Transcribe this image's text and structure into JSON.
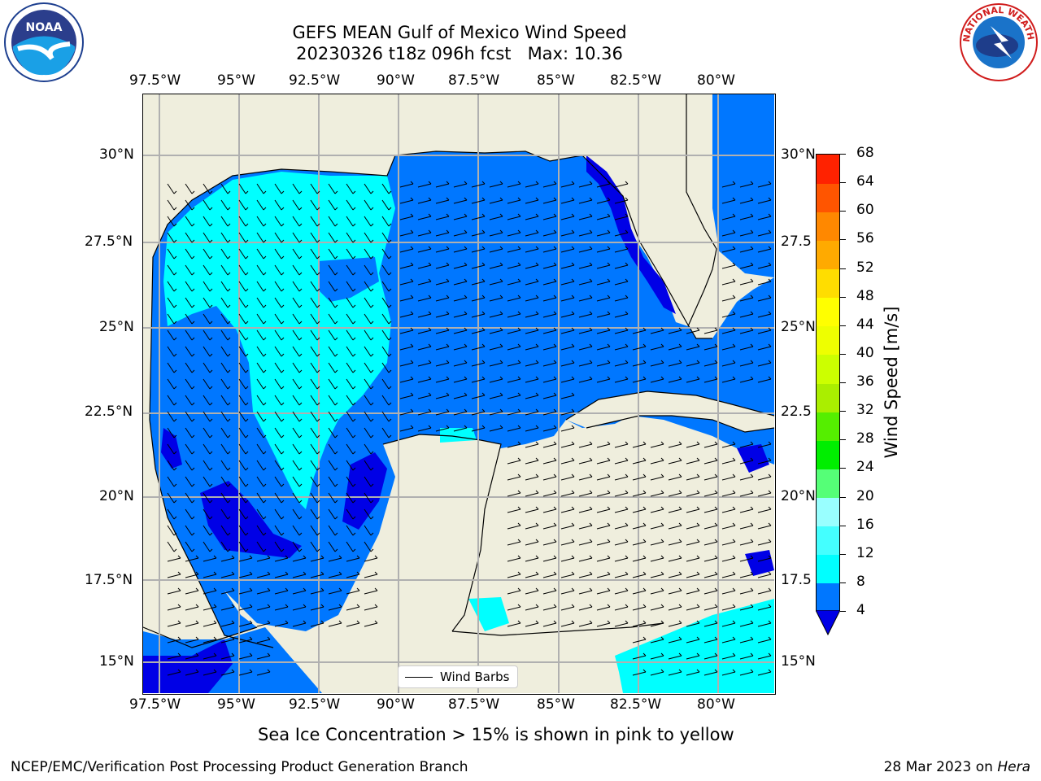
{
  "title": {
    "line1": "GEFS MEAN Gulf of Mexico Wind Speed",
    "line2": "20230326 t18z 096h fcst   Max: 10.36"
  },
  "map": {
    "lon_labels": [
      "97.5°W",
      "95°W",
      "92.5°W",
      "90°W",
      "87.5°W",
      "85°W",
      "82.5°W",
      "80°W"
    ],
    "lat_labels": [
      "30°N",
      "27.5°N",
      "25°N",
      "22.5°N",
      "20°N",
      "17.5°N",
      "15°N"
    ],
    "lat_labels_right": [
      "30°N",
      "27.5",
      "25°N",
      "22.5",
      "20°N",
      "17.5",
      "15°N"
    ],
    "legend_label": "Wind Barbs",
    "colors": {
      "land": "#efeedd",
      "ocean_4_8": "#0077ff",
      "ocean_0_4": "#0000e6",
      "ocean_8_12": "#00ffff",
      "grid": "#b0b0b0"
    }
  },
  "colorbar": {
    "label": "Wind Speed [m/s]",
    "ticks": [
      "4",
      "8",
      "12",
      "16",
      "20",
      "24",
      "28",
      "32",
      "36",
      "40",
      "44",
      "48",
      "52",
      "56",
      "60",
      "64",
      "68"
    ],
    "colors": [
      "#0077ff",
      "#00ffff",
      "#44ffff",
      "#99ffff",
      "#55ff77",
      "#00ee00",
      "#55ee00",
      "#aaee00",
      "#ccff00",
      "#eeff00",
      "#ffff00",
      "#ffdd00",
      "#ffaa00",
      "#ff8800",
      "#ff5500",
      "#ff2200"
    ],
    "extend_min_color": "#0000e6"
  },
  "subtitle": "Sea Ice Concentration > 15% is shown in pink to yellow",
  "footer": {
    "left": "NCEP/EMC/Verification Post Processing Product Generation Branch",
    "right_date": "28 Mar 2023 on ",
    "right_machine": "Hera"
  },
  "logos": {
    "noaa_text": "NOAA",
    "nws_text": "NATIONAL WEATHER SERVICE"
  }
}
